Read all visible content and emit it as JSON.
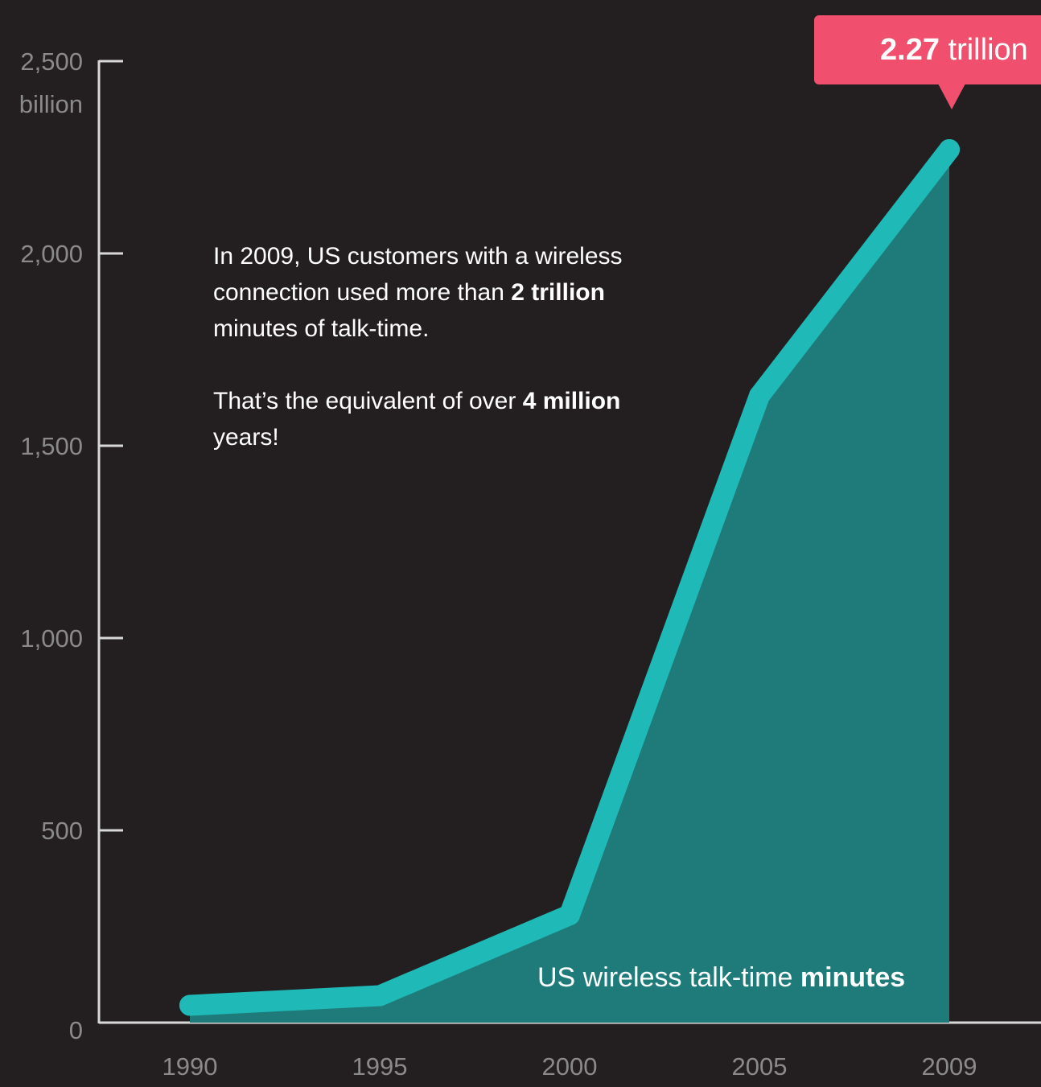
{
  "chart_data": {
    "type": "area",
    "title": "",
    "xlabel": "",
    "ylabel": "",
    "y_unit_label": "billion",
    "x": [
      "1990",
      "1995",
      "2000",
      "2005",
      "2009"
    ],
    "y_ticks": [
      0,
      500,
      1000,
      1500,
      2000,
      2500
    ],
    "y_tick_labels": [
      "0",
      "500",
      "1,000",
      "1,500",
      "2,000",
      "2,500"
    ],
    "ylim": [
      0,
      2500
    ],
    "grid": false,
    "series": [
      {
        "name": "US wireless talk-time minutes",
        "values": [
          45,
          70,
          280,
          1630,
          2270
        ]
      }
    ],
    "colors": {
      "background": "#231f20",
      "line": "#1fbab8",
      "area": "#1f7b7a",
      "axis": "#d8d8d8",
      "ticks_text": "#8b8a8a",
      "callout": "#f0506e"
    }
  },
  "annotation": {
    "p1_part1": "In 2009, US customers with a wireless connection used more than ",
    "p1_bold": "2 trillion",
    "p1_part2": " minutes of talk-time.",
    "p2_part1": "That’s the equivalent of over ",
    "p2_bold": "4 million",
    "p2_part2": " years!"
  },
  "series_label": {
    "regular": "US wireless talk-time ",
    "bold": "minutes"
  },
  "callout": {
    "bold": "2.27",
    "regular": " trillion"
  }
}
